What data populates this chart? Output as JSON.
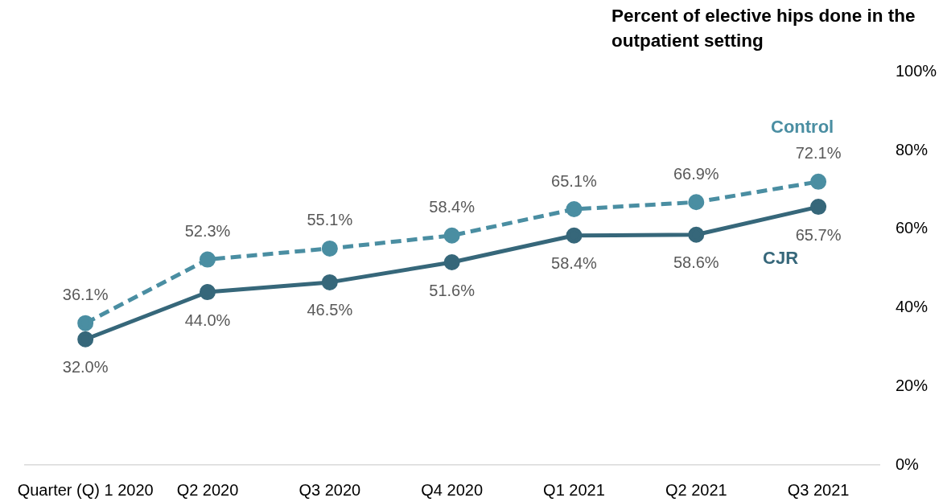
{
  "chart_data": {
    "type": "line",
    "title": "Percent of elective hips done in the outpatient setting",
    "categories": [
      "Quarter (Q) 1 2020",
      "Q2 2020",
      "Q3 2020",
      "Q4 2020",
      "Q1 2021",
      "Q2 2021",
      "Q3 2021"
    ],
    "series": [
      {
        "name": "Control",
        "color": "#4a8ea2",
        "line_style": "dashed",
        "values": [
          36.1,
          52.3,
          55.1,
          58.4,
          65.1,
          66.9,
          72.1
        ],
        "value_labels": [
          "36.1%",
          "52.3%",
          "55.1%",
          "58.4%",
          "65.1%",
          "66.9%",
          "72.1%"
        ]
      },
      {
        "name": "CJR",
        "color": "#36677a",
        "line_style": "solid",
        "values": [
          32.0,
          44.0,
          46.5,
          51.6,
          58.4,
          58.6,
          65.7
        ],
        "value_labels": [
          "32.0%",
          "44.0%",
          "46.5%",
          "51.6%",
          "58.4%",
          "58.6%",
          "65.7%"
        ]
      }
    ],
    "ylim": [
      0,
      100
    ],
    "yticks": [
      {
        "value": 0,
        "label": "0%"
      },
      {
        "value": 20,
        "label": "20%"
      },
      {
        "value": 40,
        "label": "40%"
      },
      {
        "value": 60,
        "label": "60%"
      },
      {
        "value": 80,
        "label": "80%"
      },
      {
        "value": 100,
        "label": "100%"
      }
    ],
    "grid": false,
    "legend": false,
    "marker": "circle"
  }
}
